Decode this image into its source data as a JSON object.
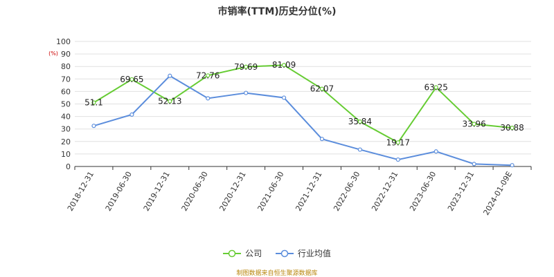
{
  "chart_data": {
    "type": "line",
    "title": "市销率(TTM)历史分位(%)",
    "ylabel": "(%)",
    "ylim": [
      0,
      100
    ],
    "yticks": [
      0,
      10,
      20,
      30,
      40,
      50,
      60,
      70,
      80,
      90,
      100
    ],
    "categories": [
      "2018-12-31",
      "2019-06-30",
      "2019-12-31",
      "2020-06-30",
      "2020-12-31",
      "2021-06-30",
      "2021-12-31",
      "2022-06-30",
      "2022-12-31",
      "2023-06-30",
      "2023-12-31",
      "2024-01-09E"
    ],
    "series": [
      {
        "name": "公司",
        "color": "#66cc33",
        "values": [
          51.1,
          69.65,
          52.13,
          72.76,
          79.69,
          81.09,
          62.07,
          35.84,
          19.17,
          63.25,
          33.96,
          30.88
        ],
        "labels": [
          "51.1",
          "69.65",
          "52.13",
          "72.76",
          "79.69",
          "81.09",
          "62.07",
          "35.84",
          "19.17",
          "63.25",
          "33.96",
          "30.88"
        ]
      },
      {
        "name": "行业均值",
        "color": "#5b8ddc",
        "values": [
          32.5,
          41.5,
          72.5,
          54.5,
          58.8,
          55.0,
          22.0,
          13.5,
          5.5,
          12.0,
          2.0,
          1.0
        ]
      }
    ],
    "grid": true,
    "legend_position": "bottom"
  },
  "footer": {
    "source": "制图数据来自恒生聚源数据库"
  }
}
